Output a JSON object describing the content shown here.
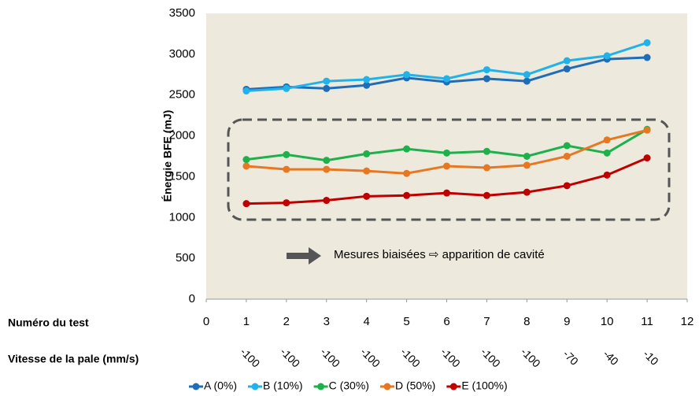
{
  "chart_data": {
    "type": "line",
    "y_label": "Énergie BFE (mJ)",
    "x_label": "Numéro du test",
    "x2_label": "Vitesse de la pale (mm/s)",
    "annotation": "Mesures biaisées ⇨ apparition de cavité",
    "x": [
      1,
      2,
      3,
      4,
      5,
      6,
      7,
      8,
      9,
      10,
      11
    ],
    "x2_values": [
      -100,
      -100,
      -100,
      -100,
      -100,
      -100,
      -100,
      -100,
      -70,
      -40,
      -10
    ],
    "series": [
      {
        "name": "A (0%)",
        "color": "#1f6db8",
        "values": [
          2570,
          2600,
          2580,
          2620,
          2710,
          2660,
          2700,
          2670,
          2820,
          2940,
          2960
        ]
      },
      {
        "name": "B (10%)",
        "color": "#22b2ea",
        "values": [
          2550,
          2580,
          2670,
          2690,
          2750,
          2700,
          2810,
          2750,
          2920,
          2980,
          3140
        ]
      },
      {
        "name": "C (30%)",
        "color": "#1db14b",
        "values": [
          1710,
          1770,
          1700,
          1780,
          1840,
          1790,
          1810,
          1750,
          1880,
          1790,
          2080
        ]
      },
      {
        "name": "D (50%)",
        "color": "#e87722",
        "values": [
          1630,
          1590,
          1590,
          1570,
          1540,
          1630,
          1610,
          1640,
          1750,
          1950,
          2070
        ]
      },
      {
        "name": "E (100%)",
        "color": "#c00000",
        "values": [
          1170,
          1180,
          1210,
          1260,
          1270,
          1300,
          1270,
          1310,
          1390,
          1520,
          1730
        ]
      }
    ],
    "xlim": [
      0,
      12
    ],
    "xticks": [
      0,
      1,
      2,
      3,
      4,
      5,
      6,
      7,
      8,
      9,
      10,
      11,
      12
    ],
    "ylim": [
      0,
      3500
    ],
    "yticks": [
      0,
      500,
      1000,
      1500,
      2000,
      2500,
      3000,
      3500
    ],
    "legend": "bottom"
  }
}
